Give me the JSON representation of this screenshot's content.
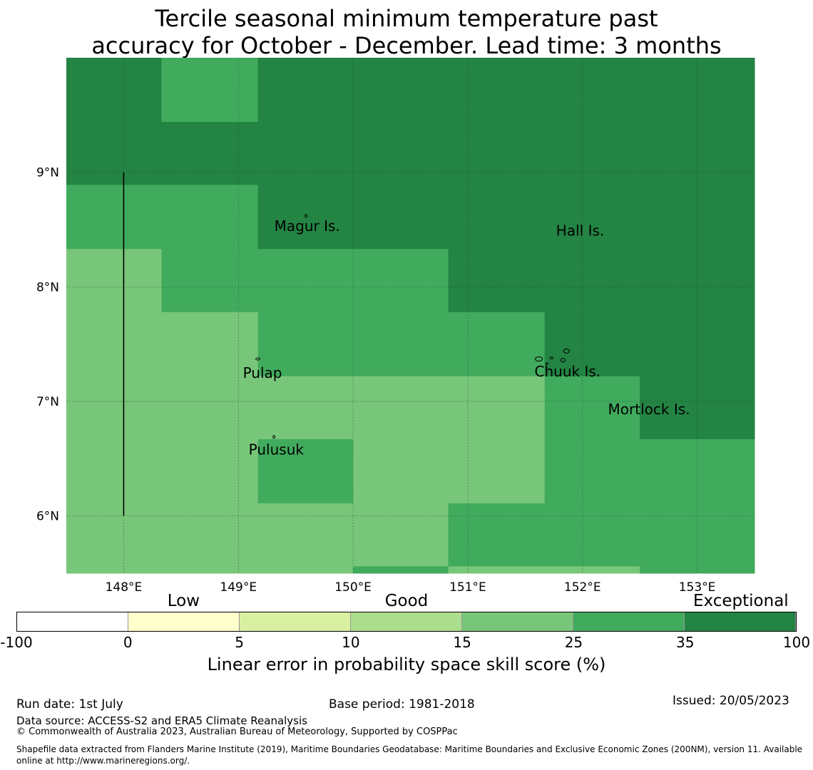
{
  "title": {
    "line1": "Tercile seasonal minimum temperature past",
    "line2": "accuracy for October - December. Lead time: 3 months"
  },
  "map": {
    "lon_range": [
      147.5,
      153.5
    ],
    "lat_range": [
      5.5,
      10.0
    ],
    "x_ticks": [
      {
        "value": 148,
        "label": "148°E"
      },
      {
        "value": 149,
        "label": "149°E"
      },
      {
        "value": 150,
        "label": "150°E"
      },
      {
        "value": 151,
        "label": "151°E"
      },
      {
        "value": 152,
        "label": "152°E"
      },
      {
        "value": 153,
        "label": "153°E"
      }
    ],
    "y_ticks": [
      {
        "value": 9,
        "label": "9°N"
      },
      {
        "value": 8,
        "label": "8°N"
      },
      {
        "value": 7,
        "label": "7°N"
      },
      {
        "value": 6,
        "label": "6°N"
      }
    ],
    "skill_colors": {
      "c15_25": "#78c679",
      "c25_35": "#41ab5d",
      "c35_100": "#238443"
    },
    "cells": [
      {
        "lon": [
          147.5,
          148.33
        ],
        "lat": [
          9.44,
          10.0
        ],
        "cls": "c35_100"
      },
      {
        "lon": [
          148.33,
          149.17
        ],
        "lat": [
          9.44,
          10.0
        ],
        "cls": "c25_35"
      },
      {
        "lon": [
          149.17,
          153.5
        ],
        "lat": [
          9.44,
          10.0
        ],
        "cls": "c35_100"
      },
      {
        "lon": [
          147.5,
          153.5
        ],
        "lat": [
          8.89,
          9.44
        ],
        "cls": "c35_100"
      },
      {
        "lon": [
          147.5,
          149.17
        ],
        "lat": [
          8.33,
          8.89
        ],
        "cls": "c25_35"
      },
      {
        "lon": [
          149.17,
          153.5
        ],
        "lat": [
          8.33,
          8.89
        ],
        "cls": "c35_100"
      },
      {
        "lon": [
          147.5,
          148.33
        ],
        "lat": [
          7.78,
          8.33
        ],
        "cls": "c15_25"
      },
      {
        "lon": [
          148.33,
          150.83
        ],
        "lat": [
          7.78,
          8.33
        ],
        "cls": "c25_35"
      },
      {
        "lon": [
          150.83,
          153.5
        ],
        "lat": [
          7.78,
          8.33
        ],
        "cls": "c35_100"
      },
      {
        "lon": [
          147.5,
          149.17
        ],
        "lat": [
          7.22,
          7.78
        ],
        "cls": "c15_25"
      },
      {
        "lon": [
          149.17,
          151.67
        ],
        "lat": [
          7.22,
          7.78
        ],
        "cls": "c25_35"
      },
      {
        "lon": [
          151.67,
          153.5
        ],
        "lat": [
          7.22,
          7.78
        ],
        "cls": "c35_100"
      },
      {
        "lon": [
          147.5,
          151.67
        ],
        "lat": [
          6.67,
          7.22
        ],
        "cls": "c15_25"
      },
      {
        "lon": [
          151.67,
          152.5
        ],
        "lat": [
          6.67,
          7.22
        ],
        "cls": "c25_35"
      },
      {
        "lon": [
          152.5,
          153.5
        ],
        "lat": [
          6.67,
          7.22
        ],
        "cls": "c35_100"
      },
      {
        "lon": [
          147.5,
          149.17
        ],
        "lat": [
          6.11,
          6.67
        ],
        "cls": "c15_25"
      },
      {
        "lon": [
          149.17,
          150.0
        ],
        "lat": [
          6.11,
          6.67
        ],
        "cls": "c25_35"
      },
      {
        "lon": [
          150.0,
          151.67
        ],
        "lat": [
          6.11,
          6.67
        ],
        "cls": "c15_25"
      },
      {
        "lon": [
          151.67,
          153.5
        ],
        "lat": [
          6.11,
          6.67
        ],
        "cls": "c25_35"
      },
      {
        "lon": [
          147.5,
          150.83
        ],
        "lat": [
          5.56,
          6.11
        ],
        "cls": "c15_25"
      },
      {
        "lon": [
          150.83,
          153.5
        ],
        "lat": [
          5.56,
          6.11
        ],
        "cls": "c25_35"
      },
      {
        "lon": [
          147.5,
          150.0
        ],
        "lat": [
          5.5,
          5.56
        ],
        "cls": "c15_25"
      },
      {
        "lon": [
          150.0,
          150.83
        ],
        "lat": [
          5.5,
          5.56
        ],
        "cls": "c25_35"
      },
      {
        "lon": [
          150.83,
          152.5
        ],
        "lat": [
          5.5,
          5.56
        ],
        "cls": "c15_25"
      },
      {
        "lon": [
          152.5,
          153.5
        ],
        "lat": [
          5.5,
          5.56
        ],
        "cls": "c25_35"
      }
    ],
    "places": [
      {
        "name": "Magur Is.",
        "lon": 149.6,
        "lat": 8.53
      },
      {
        "name": "Hall Is.",
        "lon": 151.98,
        "lat": 8.49
      },
      {
        "name": "Pulap",
        "lon": 149.21,
        "lat": 7.25
      },
      {
        "name": "Chuuk Is.",
        "lon": 151.87,
        "lat": 7.26
      },
      {
        "name": "Mortlock Is.",
        "lon": 152.58,
        "lat": 6.93
      },
      {
        "name": "Pulusuk",
        "lon": 149.33,
        "lat": 6.58
      }
    ]
  },
  "colorbar": {
    "categories": [
      {
        "text": "Low",
        "at": "0-5"
      },
      {
        "text": "Good",
        "at": "10-15"
      },
      {
        "text": "Exceptional",
        "at": "35-100"
      }
    ],
    "bins": [
      {
        "from": "-100",
        "to": "0",
        "color": "#ffffff"
      },
      {
        "from": "0",
        "to": "5",
        "color": "#ffffcc"
      },
      {
        "from": "5",
        "to": "10",
        "color": "#d9f0a3"
      },
      {
        "from": "10",
        "to": "15",
        "color": "#addd8e"
      },
      {
        "from": "15",
        "to": "25",
        "color": "#78c679"
      },
      {
        "from": "25",
        "to": "35",
        "color": "#41ab5d"
      },
      {
        "from": "35",
        "to": "100",
        "color": "#238443"
      }
    ],
    "ticks": [
      "-100",
      "0",
      "5",
      "10",
      "15",
      "25",
      "35",
      "100"
    ],
    "label": "Linear error in probability space skill score (%)"
  },
  "footer": {
    "run_date": "Run date: 1st July",
    "base_period": "Base period: 1981-2018",
    "issued": "Issued: 20/05/2023",
    "data_source": "Data source: ACCESS-S2 and ERA5 Climate Reanalysis",
    "copyright": "© Commonwealth of Australia 2023, Australian Bureau of Meteorology, Supported by COSPPac",
    "shapefile": "Shapefile data extracted from Flanders Marine Institute (2019), Maritime Boundaries Geodatabase: Maritime Boundaries and Exclusive Economic Zones (200NM), version 11. Available online at http://www.marineregions.org/."
  }
}
